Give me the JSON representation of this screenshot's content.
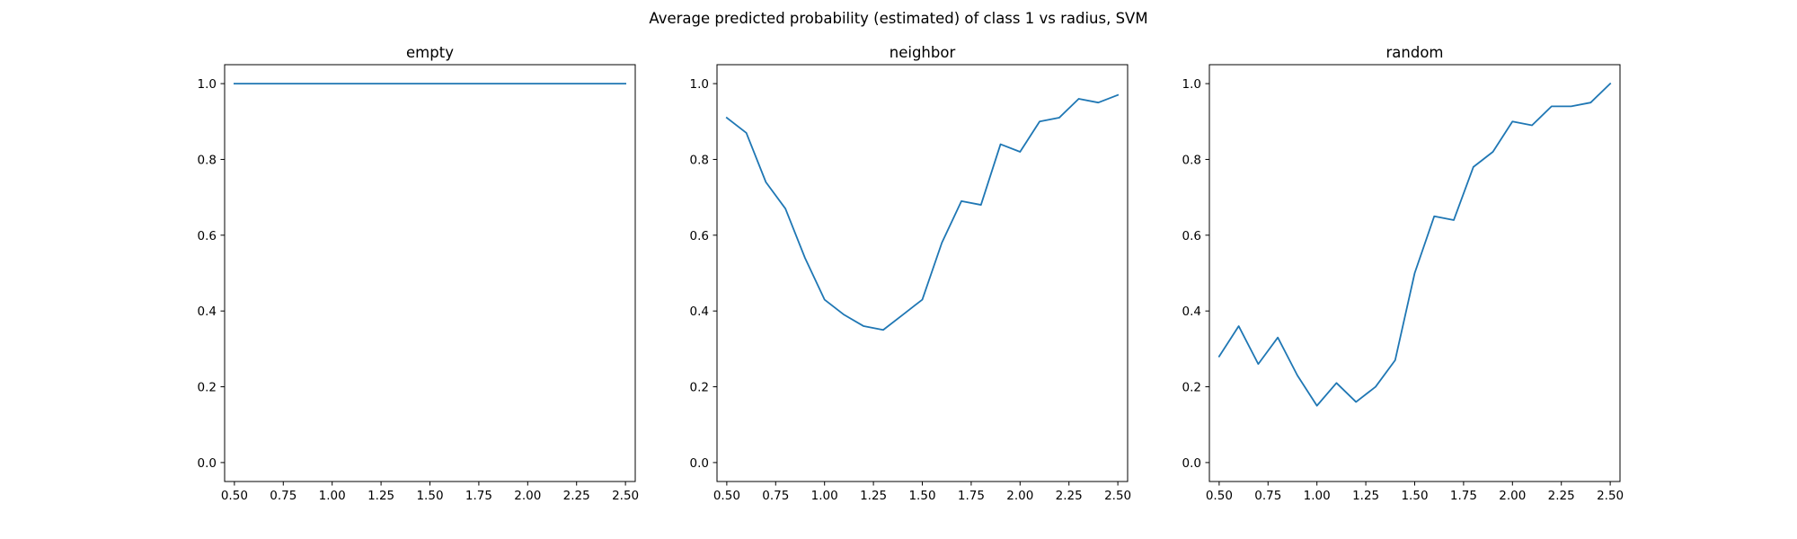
{
  "figure": {
    "title": "Average predicted probability (estimated) of class 1 vs radius, SVM",
    "line_color": "#1f77b4"
  },
  "chart_data": [
    {
      "type": "line",
      "title": "empty",
      "xlabel": "",
      "ylabel": "",
      "xlim": [
        0.45,
        2.55
      ],
      "ylim": [
        -0.05,
        1.05
      ],
      "xticks": [
        0.5,
        0.75,
        1.0,
        1.25,
        1.5,
        1.75,
        2.0,
        2.25,
        2.5
      ],
      "xtick_labels": [
        "0.50",
        "0.75",
        "1.00",
        "1.25",
        "1.50",
        "1.75",
        "2.00",
        "2.25",
        "2.50"
      ],
      "yticks": [
        0.0,
        0.2,
        0.4,
        0.6,
        0.8,
        1.0
      ],
      "ytick_labels": [
        "0.0",
        "0.2",
        "0.4",
        "0.6",
        "0.8",
        "1.0"
      ],
      "grid": false,
      "x": [
        0.5,
        0.6,
        0.7,
        0.8,
        0.9,
        1.0,
        1.1,
        1.2,
        1.3,
        1.4,
        1.5,
        1.6,
        1.7,
        1.8,
        1.9,
        2.0,
        2.1,
        2.2,
        2.3,
        2.4,
        2.5
      ],
      "y": [
        1.0,
        1.0,
        1.0,
        1.0,
        1.0,
        1.0,
        1.0,
        1.0,
        1.0,
        1.0,
        1.0,
        1.0,
        1.0,
        1.0,
        1.0,
        1.0,
        1.0,
        1.0,
        1.0,
        1.0,
        1.0
      ]
    },
    {
      "type": "line",
      "title": "neighbor",
      "xlabel": "",
      "ylabel": "",
      "xlim": [
        0.45,
        2.55
      ],
      "ylim": [
        -0.05,
        1.05
      ],
      "xticks": [
        0.5,
        0.75,
        1.0,
        1.25,
        1.5,
        1.75,
        2.0,
        2.25,
        2.5
      ],
      "xtick_labels": [
        "0.50",
        "0.75",
        "1.00",
        "1.25",
        "1.50",
        "1.75",
        "2.00",
        "2.25",
        "2.50"
      ],
      "yticks": [
        0.0,
        0.2,
        0.4,
        0.6,
        0.8,
        1.0
      ],
      "ytick_labels": [
        "0.0",
        "0.2",
        "0.4",
        "0.6",
        "0.8",
        "1.0"
      ],
      "grid": false,
      "x": [
        0.5,
        0.6,
        0.7,
        0.8,
        0.9,
        1.0,
        1.1,
        1.2,
        1.3,
        1.4,
        1.5,
        1.6,
        1.7,
        1.8,
        1.9,
        2.0,
        2.1,
        2.2,
        2.3,
        2.4,
        2.5
      ],
      "y": [
        0.91,
        0.87,
        0.74,
        0.67,
        0.54,
        0.43,
        0.39,
        0.36,
        0.35,
        0.39,
        0.43,
        0.58,
        0.69,
        0.68,
        0.84,
        0.82,
        0.9,
        0.91,
        0.96,
        0.95,
        0.97
      ]
    },
    {
      "type": "line",
      "title": "random",
      "xlabel": "",
      "ylabel": "",
      "xlim": [
        0.45,
        2.55
      ],
      "ylim": [
        -0.05,
        1.05
      ],
      "xticks": [
        0.5,
        0.75,
        1.0,
        1.25,
        1.5,
        1.75,
        2.0,
        2.25,
        2.5
      ],
      "xtick_labels": [
        "0.50",
        "0.75",
        "1.00",
        "1.25",
        "1.50",
        "1.75",
        "2.00",
        "2.25",
        "2.50"
      ],
      "yticks": [
        0.0,
        0.2,
        0.4,
        0.6,
        0.8,
        1.0
      ],
      "ytick_labels": [
        "0.0",
        "0.2",
        "0.4",
        "0.6",
        "0.8",
        "1.0"
      ],
      "grid": false,
      "x": [
        0.5,
        0.6,
        0.7,
        0.8,
        0.9,
        1.0,
        1.1,
        1.2,
        1.3,
        1.4,
        1.5,
        1.6,
        1.7,
        1.8,
        1.9,
        2.0,
        2.1,
        2.2,
        2.3,
        2.4,
        2.5
      ],
      "y": [
        0.28,
        0.36,
        0.26,
        0.33,
        0.23,
        0.15,
        0.21,
        0.16,
        0.2,
        0.27,
        0.5,
        0.65,
        0.64,
        0.78,
        0.82,
        0.9,
        0.89,
        0.94,
        0.94,
        0.95,
        1.0
      ]
    }
  ]
}
